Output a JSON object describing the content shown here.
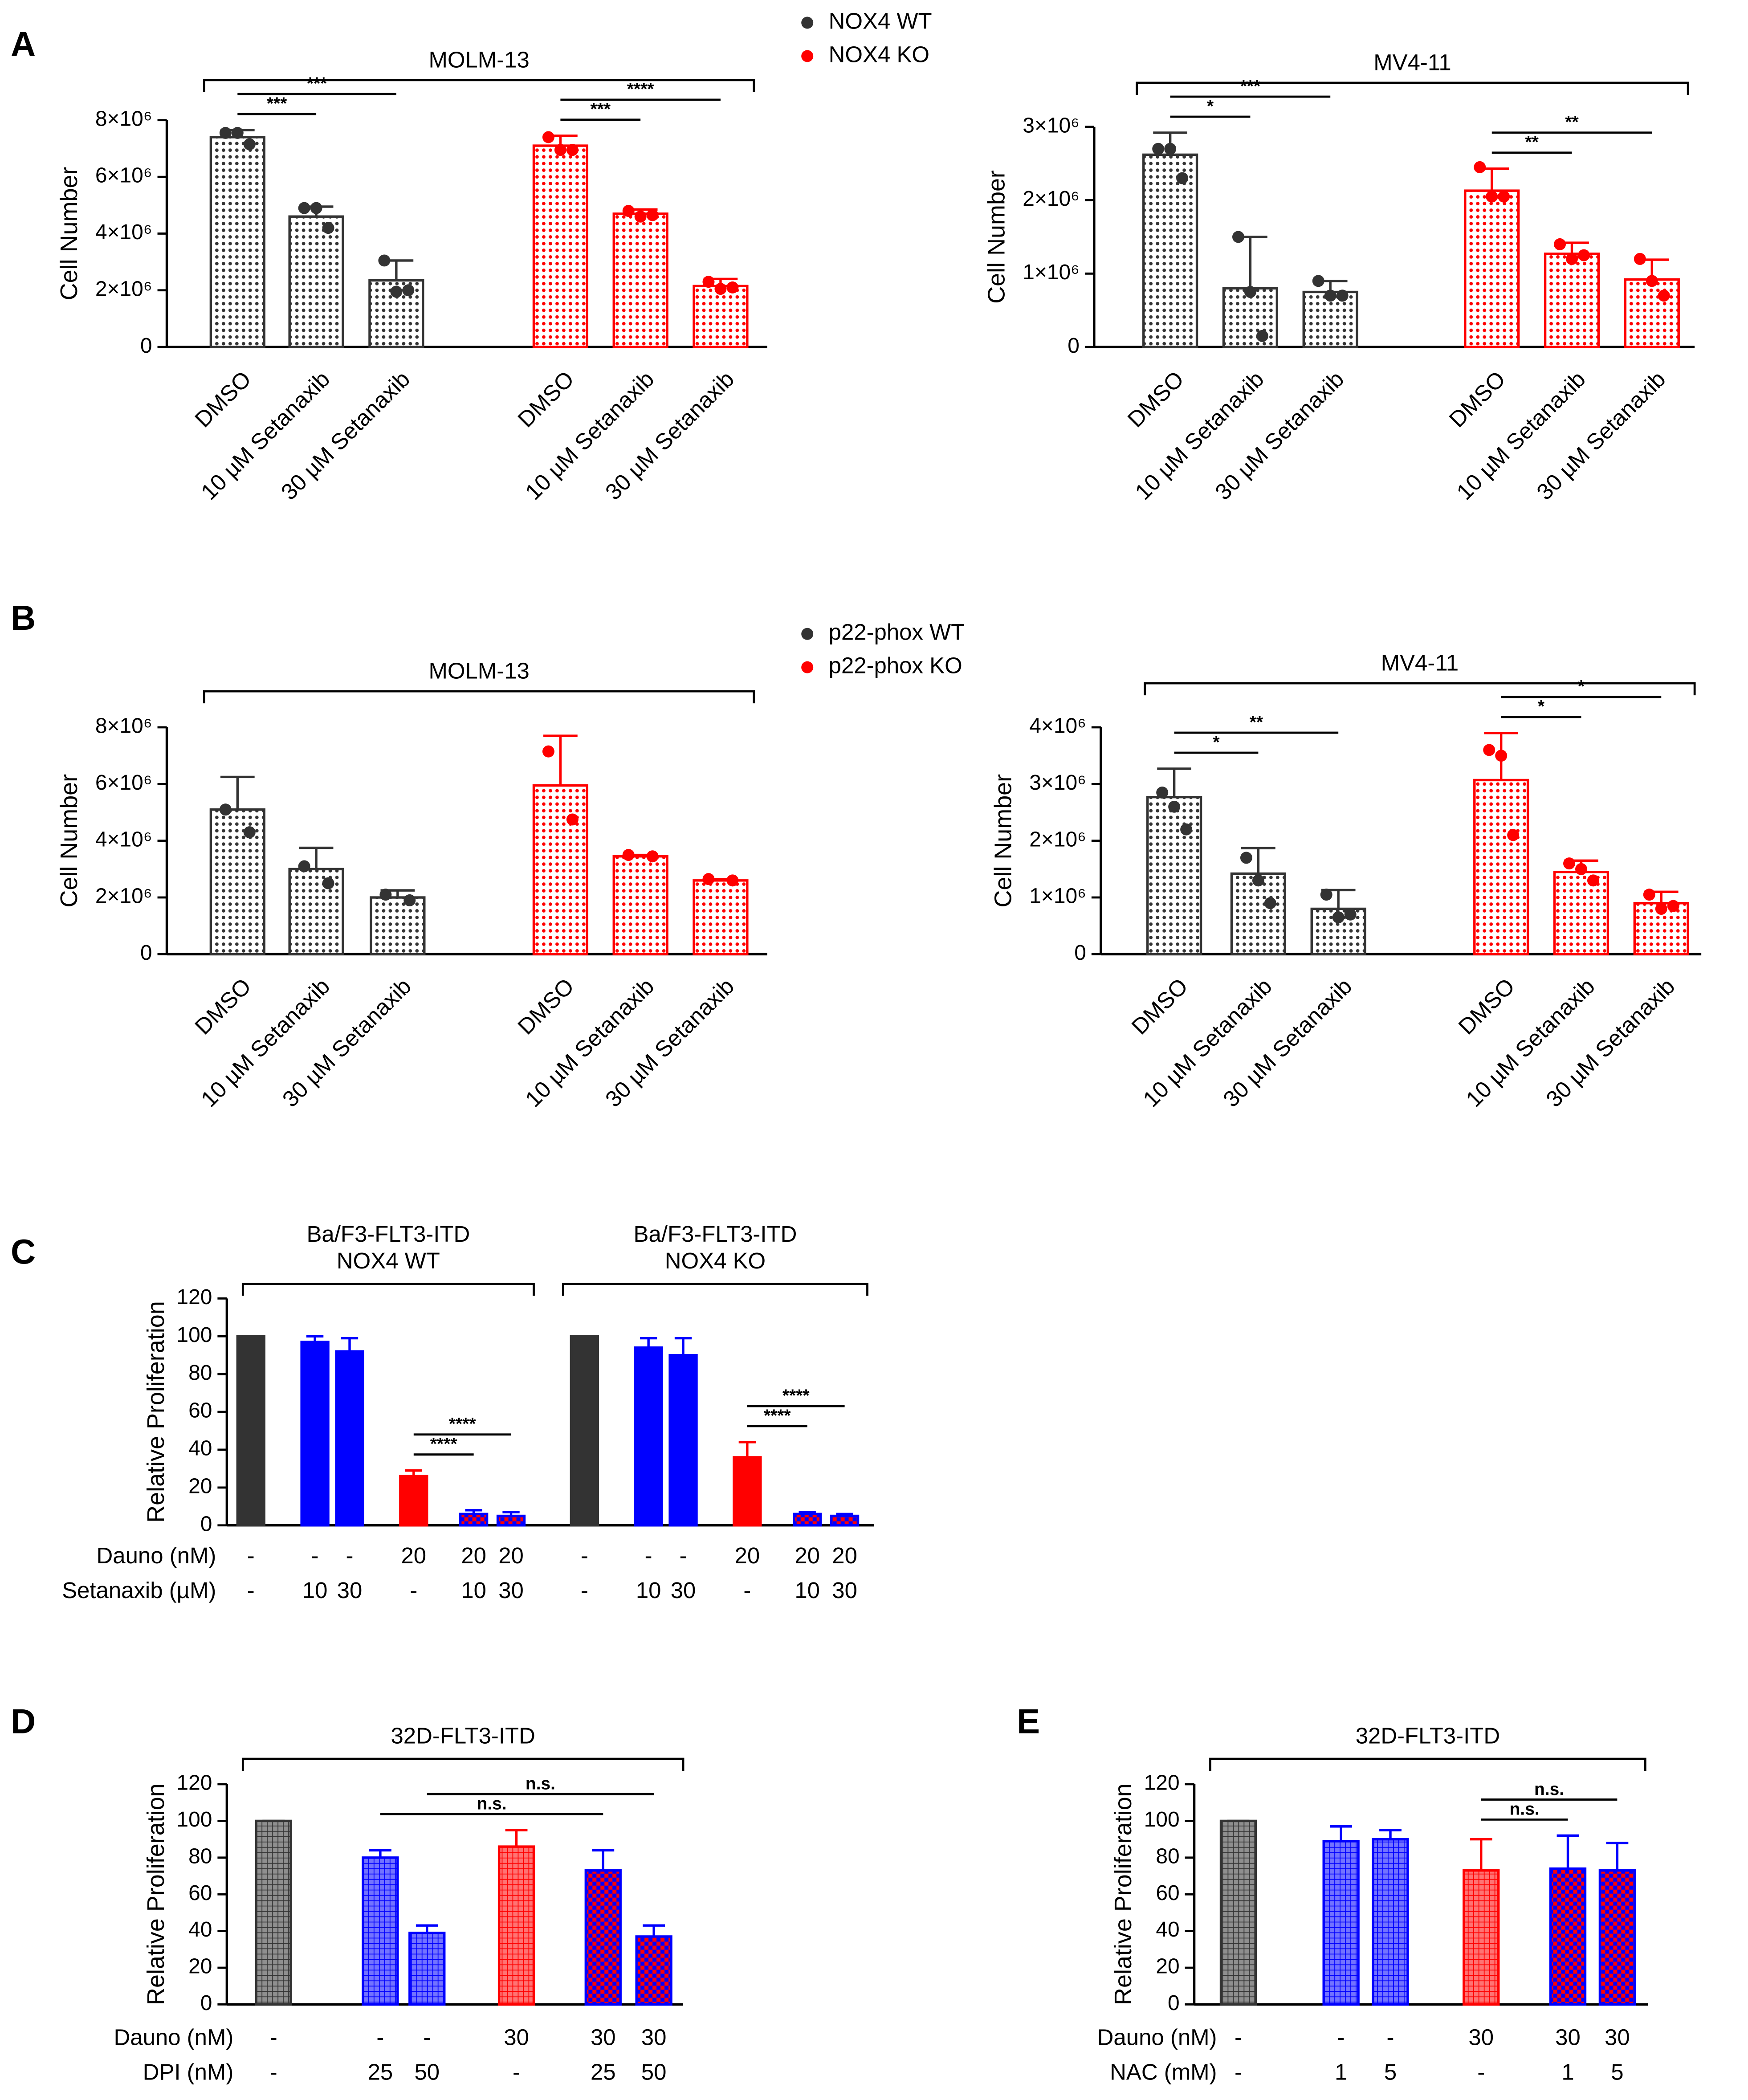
{
  "chart_data": [
    {
      "type": "bar",
      "panel": "A",
      "title": "MOLM-13",
      "ylabel": "Cell Number",
      "fill_style": "dots",
      "categories": [
        "DMSO",
        "10 µM Setanaxib",
        "30 µM Setanaxib"
      ],
      "series": [
        {
          "name": "NOX4 WT",
          "color": "#333333",
          "values": [
            7400000,
            4600000,
            2350000
          ],
          "errors": [
            250000,
            350000,
            700000
          ],
          "points": [
            [
              7550000,
              7550000,
              7150000
            ],
            [
              4900000,
              4900000,
              4200000
            ],
            [
              3050000,
              1950000,
              2000000
            ]
          ]
        },
        {
          "name": "NOX4 KO",
          "color": "#ff0000",
          "values": [
            7100000,
            4700000,
            2150000
          ],
          "errors": [
            350000,
            150000,
            250000
          ],
          "points": [
            [
              7400000,
              6950000,
              6950000
            ],
            [
              4800000,
              4600000,
              4650000
            ],
            [
              2300000,
              2050000,
              2100000
            ]
          ]
        }
      ],
      "ylim": [
        0,
        8000000
      ],
      "yticks": [
        0,
        {
          "value": 2000000,
          "label": "2×10⁶"
        },
        {
          "value": 4000000,
          "label": "4×10⁶"
        },
        {
          "value": 6000000,
          "label": "6×10⁶"
        },
        {
          "value": 8000000,
          "label": "8×10⁶"
        }
      ],
      "annotations": [
        {
          "series": 0,
          "from": 0,
          "to": 1,
          "text": "***"
        },
        {
          "series": 0,
          "from": 0,
          "to": 2,
          "text": "***"
        },
        {
          "series": 1,
          "from": 0,
          "to": 1,
          "text": "***"
        },
        {
          "series": 1,
          "from": 0,
          "to": 2,
          "text": "****"
        }
      ]
    },
    {
      "type": "bar",
      "title": "MV4-11",
      "ylabel": "Cell Number",
      "fill_style": "dots",
      "categories": [
        "DMSO",
        "10 µM Setanaxib",
        "30 µM Setanaxib"
      ],
      "series": [
        {
          "color": "#333333",
          "values": [
            2620000,
            800000,
            750000
          ],
          "errors": [
            300000,
            700000,
            150000
          ],
          "points": [
            [
              2700000,
              2700000,
              2300000
            ],
            [
              1500000,
              750000,
              150000
            ],
            [
              900000,
              700000,
              700000
            ]
          ]
        },
        {
          "color": "#ff0000",
          "values": [
            2130000,
            1270000,
            920000
          ],
          "errors": [
            300000,
            150000,
            270000
          ],
          "points": [
            [
              2450000,
              2050000,
              2050000
            ],
            [
              1400000,
              1200000,
              1250000
            ],
            [
              1200000,
              900000,
              700000
            ]
          ]
        }
      ],
      "ylim": [
        0,
        3000000
      ],
      "yticks": [
        0,
        {
          "value": 1000000,
          "label": "1×10⁶"
        },
        {
          "value": 2000000,
          "label": "2×10⁶"
        },
        {
          "value": 3000000,
          "label": "3×10⁶"
        }
      ],
      "annotations": [
        {
          "series": 0,
          "from": 0,
          "to": 1,
          "text": "*"
        },
        {
          "series": 0,
          "from": 0,
          "to": 2,
          "text": "***"
        },
        {
          "series": 1,
          "from": 0,
          "to": 1,
          "text": "**"
        },
        {
          "series": 1,
          "from": 0,
          "to": 2,
          "text": "**"
        }
      ]
    },
    {
      "type": "bar",
      "panel": "B",
      "title": "MOLM-13",
      "ylabel": "Cell Number",
      "fill_style": "dots",
      "categories": [
        "DMSO",
        "10 µM Setanaxib",
        "30 µM Setanaxib"
      ],
      "series": [
        {
          "name": "p22-phox WT",
          "color": "#333333",
          "values": [
            5100000,
            3000000,
            2000000
          ],
          "errors": [
            1150000,
            750000,
            250000
          ],
          "points": [
            [
              5100000,
              4300000
            ],
            [
              3100000,
              2500000
            ],
            [
              2100000,
              1900000
            ]
          ]
        },
        {
          "name": "p22-phox KO",
          "color": "#ff0000",
          "values": [
            5950000,
            3450000,
            2600000
          ],
          "errors": [
            1750000,
            50000,
            50000
          ],
          "points": [
            [
              7150000,
              4750000
            ],
            [
              3500000,
              3450000
            ],
            [
              2650000,
              2600000
            ]
          ]
        }
      ],
      "ylim": [
        0,
        8000000
      ],
      "yticks": [
        0,
        {
          "value": 2000000,
          "label": "2×10⁶"
        },
        {
          "value": 4000000,
          "label": "4×10⁶"
        },
        {
          "value": 6000000,
          "label": "6×10⁶"
        },
        {
          "value": 8000000,
          "label": "8×10⁶"
        }
      ],
      "annotations": []
    },
    {
      "type": "bar",
      "title": "MV4-11",
      "ylabel": "Cell Number",
      "fill_style": "dots",
      "categories": [
        "DMSO",
        "10 µM Setanaxib",
        "30 µM Setanaxib"
      ],
      "series": [
        {
          "color": "#333333",
          "values": [
            2770000,
            1420000,
            800000
          ],
          "errors": [
            500000,
            450000,
            330000
          ],
          "points": [
            [
              2850000,
              2600000,
              2200000
            ],
            [
              1700000,
              1300000,
              900000
            ],
            [
              1050000,
              650000,
              700000
            ]
          ]
        },
        {
          "color": "#ff0000",
          "values": [
            3070000,
            1450000,
            900000
          ],
          "errors": [
            830000,
            200000,
            200000
          ],
          "points": [
            [
              3600000,
              3500000,
              2100000
            ],
            [
              1600000,
              1500000,
              1300000
            ],
            [
              1050000,
              800000,
              850000
            ]
          ]
        }
      ],
      "ylim": [
        0,
        4000000
      ],
      "yticks": [
        0,
        {
          "value": 1000000,
          "label": "1×10⁶"
        },
        {
          "value": 2000000,
          "label": "2×10⁶"
        },
        {
          "value": 3000000,
          "label": "3×10⁶"
        },
        {
          "value": 4000000,
          "label": "4×10⁶"
        }
      ],
      "annotations": [
        {
          "series": 0,
          "from": 0,
          "to": 1,
          "text": "*"
        },
        {
          "series": 0,
          "from": 0,
          "to": 2,
          "text": "**"
        },
        {
          "series": 1,
          "from": 0,
          "to": 1,
          "text": "*"
        },
        {
          "series": 1,
          "from": 0,
          "to": 2,
          "text": "*"
        }
      ]
    },
    {
      "type": "bar",
      "panel": "C",
      "ylabel": "Relative Proliferation",
      "fill_style": "solid",
      "row_labels": [
        "Dauno (nM)",
        "Setanaxib (µM)"
      ],
      "colors": [
        "#333333",
        "#0000ff",
        "#0000ff",
        "#ff0000",
        "#ff0000",
        "#ff0000"
      ],
      "edges": [
        "#333333",
        "#0000ff",
        "#0000ff",
        "#ff0000",
        "#0000ff",
        "#0000ff"
      ],
      "groups": [
        {
          "title": [
            "Ba/F3-FLT3-ITD",
            "NOX4 WT"
          ],
          "values": [
            100,
            97,
            92,
            26,
            6,
            5
          ],
          "errors": [
            0,
            3,
            7,
            3,
            2,
            2
          ],
          "rows": [
            [
              "-",
              "-",
              "-",
              "20",
              "20",
              "20"
            ],
            [
              "-",
              "10",
              "30",
              "-",
              "10",
              "30"
            ]
          ]
        },
        {
          "title": [
            "Ba/F3-FLT3-ITD",
            "NOX4 KO"
          ],
          "values": [
            100,
            94,
            90,
            36,
            6,
            5
          ],
          "errors": [
            0,
            5,
            9,
            8,
            1,
            1
          ],
          "rows": [
            [
              "-",
              "-",
              "-",
              "20",
              "20",
              "20"
            ],
            [
              "-",
              "10",
              "30",
              "-",
              "10",
              "30"
            ]
          ]
        }
      ],
      "ylim": [
        0,
        120
      ],
      "yticks": [
        0,
        20,
        40,
        60,
        80,
        100,
        120
      ],
      "annotations": [
        {
          "group": 0,
          "from": 3,
          "to": 4,
          "text": "****"
        },
        {
          "group": 0,
          "from": 3,
          "to": 5,
          "text": "****"
        },
        {
          "group": 1,
          "from": 3,
          "to": 4,
          "text": "****"
        },
        {
          "group": 1,
          "from": 3,
          "to": 5,
          "text": "****"
        }
      ]
    },
    {
      "type": "bar",
      "panel": "D",
      "ylabel": "Relative Proliferation",
      "fill_style": "grid",
      "row_labels": [
        "Dauno (nM)",
        "DPI (nM)"
      ],
      "colors": [
        "#333333",
        "#0000ff",
        "#0000ff",
        "#ff0000",
        "#ff0000",
        "#ff0000"
      ],
      "edges": [
        "#333333",
        "#0000ff",
        "#0000ff",
        "#ff0000",
        "#0000ff",
        "#0000ff"
      ],
      "groups": [
        {
          "title": [
            "32D-FLT3-ITD"
          ],
          "values": [
            100,
            80,
            39,
            86,
            73,
            37
          ],
          "errors": [
            0,
            4,
            4,
            9,
            11,
            6
          ],
          "rows": [
            [
              "-",
              "-",
              "-",
              "30",
              "30",
              "30"
            ],
            [
              "-",
              "25",
              "50",
              "-",
              "25",
              "50"
            ]
          ]
        }
      ],
      "ylim": [
        0,
        120
      ],
      "yticks": [
        0,
        20,
        40,
        60,
        80,
        100,
        120
      ],
      "annotations": [
        {
          "group": 0,
          "from": 1,
          "to": 4,
          "text": "n.s."
        },
        {
          "group": 0,
          "from": 2,
          "to": 5,
          "text": "n.s."
        }
      ]
    },
    {
      "type": "bar",
      "panel": "E",
      "ylabel": "Relative Proliferation",
      "fill_style": "grid",
      "row_labels": [
        "Dauno (nM)",
        "NAC (mM)"
      ],
      "colors": [
        "#333333",
        "#0000ff",
        "#0000ff",
        "#ff0000",
        "#ff0000",
        "#ff0000"
      ],
      "edges": [
        "#333333",
        "#0000ff",
        "#0000ff",
        "#ff0000",
        "#0000ff",
        "#0000ff"
      ],
      "groups": [
        {
          "title": [
            "32D-FLT3-ITD"
          ],
          "values": [
            100,
            89,
            90,
            73,
            74,
            73
          ],
          "errors": [
            0,
            8,
            5,
            17,
            18,
            15
          ],
          "rows": [
            [
              "-",
              "-",
              "-",
              "30",
              "30",
              "30"
            ],
            [
              "-",
              "1",
              "5",
              "-",
              "1",
              "5"
            ]
          ]
        }
      ],
      "ylim": [
        0,
        120
      ],
      "yticks": [
        0,
        20,
        40,
        60,
        80,
        100,
        120
      ],
      "annotations": [
        {
          "group": 0,
          "from": 3,
          "to": 4,
          "text": "n.s."
        },
        {
          "group": 0,
          "from": 3,
          "to": 5,
          "text": "n.s."
        }
      ]
    }
  ]
}
